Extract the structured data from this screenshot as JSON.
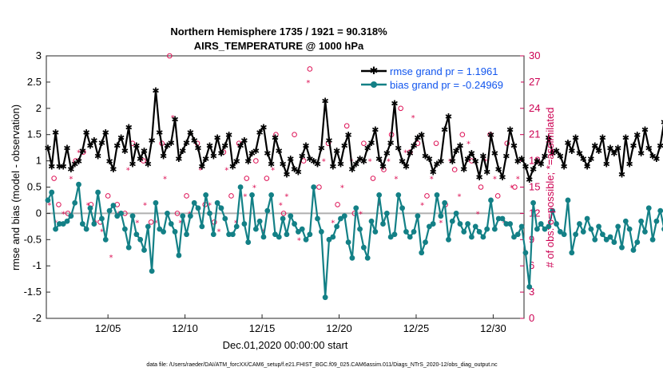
{
  "chart_data": {
    "type": "line",
    "title": "Northern Hemisphere 1735 / 1921 = 90.318%",
    "subtitle": "AIRS_TEMPERATURE @ 1000 hPa",
    "xlabel": "Dec.01,2020 00:00:00 start",
    "ylabel": "rmse and bias (model - observation)",
    "y2label": "# of obs: o=possible; *=assimilated",
    "footer": "data file: /Users/raeder/DAI/ATM_forcXX/CAM6_setup/f.e21.FHIST_BGC.f09_025.CAM6assim.011/Diags_NTrS_2020-12/obs_diag_output.nc",
    "xlim": [
      1,
      32
    ],
    "ylim": [
      -2,
      3
    ],
    "y2lim": [
      0,
      30
    ],
    "x_ticks": [
      {
        "x": 5,
        "label": "12/05"
      },
      {
        "x": 10,
        "label": "12/10"
      },
      {
        "x": 15,
        "label": "12/15"
      },
      {
        "x": 20,
        "label": "12/20"
      },
      {
        "x": 25,
        "label": "12/25"
      },
      {
        "x": 30,
        "label": "12/30"
      }
    ],
    "y_ticks": [
      "-2",
      "-1.5",
      "-1",
      "-0.5",
      "0",
      "0.5",
      "1",
      "1.5",
      "2",
      "2.5",
      "3"
    ],
    "y2_ticks": [
      "0",
      "3",
      "6",
      "9",
      "12",
      "15",
      "18",
      "21",
      "24",
      "27",
      "30"
    ],
    "legend": {
      "position": "top-right",
      "entries": [
        "rmse grand pr = 1.1961",
        "bias grand pr = -0.24969"
      ]
    },
    "x_start": 1.1,
    "x_step": 0.25,
    "series": [
      {
        "name": "rmse",
        "color": "#000000",
        "values": [
          1.25,
          0.9,
          1.55,
          0.9,
          0.9,
          1.25,
          0.85,
          0.95,
          1.0,
          1.2,
          1.55,
          1.3,
          1.4,
          1.1,
          1.35,
          1.55,
          1.0,
          0.85,
          1.3,
          1.45,
          1.2,
          1.65,
          0.95,
          1.3,
          1.05,
          1.2,
          0.95,
          1.4,
          2.35,
          1.55,
          1.1,
          1.3,
          1.35,
          1.8,
          1.05,
          1.2,
          1.35,
          1.55,
          1.4,
          1.25,
          0.9,
          1.05,
          1.3,
          1.1,
          1.45,
          1.15,
          1.3,
          1.5,
          0.9,
          1.0,
          1.3,
          1.4,
          1.0,
          1.15,
          1.2,
          1.55,
          1.65,
          1.15,
          0.95,
          1.45,
          1.2,
          0.95,
          0.75,
          1.05,
          0.85,
          0.8,
          1.1,
          1.3,
          1.05,
          1.0,
          0.95,
          1.25,
          2.15,
          1.4,
          0.9,
          1.2,
          0.95,
          1.3,
          1.5,
          0.85,
          0.95,
          1.05,
          1.0,
          1.25,
          1.35,
          1.6,
          1.05,
          0.9,
          1.15,
          1.35,
          2.1,
          1.25,
          1.0,
          0.9,
          1.15,
          1.3,
          1.45,
          1.5,
          1.1,
          1.05,
          0.8,
          0.95,
          1.0,
          1.6,
          1.85,
          1.0,
          1.2,
          1.3,
          0.85,
          1.05,
          1.15,
          1.0,
          0.7,
          1.1,
          0.8,
          1.5,
          1.15,
          0.85,
          0.7,
          1.1,
          1.6,
          1.3,
          1.0,
          1.05,
          0.9,
          0.65,
          0.85,
          1.0,
          0.95,
          1.1,
          1.45,
          1.15,
          1.2,
          1.1,
          0.9,
          1.35,
          1.2,
          1.45,
          1.15,
          1.05,
          0.9,
          1.05,
          1.3,
          1.2,
          1.45,
          0.95,
          1.25,
          1.15,
          1.25,
          0.75,
          1.45,
          0.95,
          1.3,
          1.5,
          1.15,
          1.6,
          1.25,
          1.1,
          1.05,
          1.3,
          1.75,
          1.2,
          1.05,
          1.35,
          1.25,
          1.0,
          1.55,
          1.1,
          1.15,
          1.45,
          1.45,
          1.05,
          1.0,
          1.25,
          1.05,
          0.85,
          0.95,
          0.95,
          1.0,
          1.85,
          1.0,
          0.7
        ]
      },
      {
        "name": "bias",
        "color": "#138086",
        "values": [
          0.25,
          0.4,
          -0.3,
          -0.2,
          -0.2,
          -0.15,
          -0.05,
          0.2,
          0.55,
          -0.2,
          -0.3,
          0.1,
          -0.2,
          0.4,
          -0.1,
          -0.5,
          0.05,
          0.15,
          -0.05,
          0.0,
          -0.3,
          -0.65,
          -0.05,
          -0.4,
          -0.5,
          -0.7,
          -0.25,
          -1.1,
          0.2,
          -0.3,
          -0.35,
          0.0,
          -0.2,
          -0.35,
          -0.8,
          -0.05,
          -0.4,
          -0.05,
          0.2,
          0.1,
          -0.25,
          0.35,
          0.0,
          -0.4,
          0.2,
          0.1,
          -0.1,
          -0.4,
          -0.4,
          -0.25,
          0.5,
          -0.2,
          -0.55,
          0.35,
          -0.3,
          -0.15,
          -0.45,
          0.05,
          0.35,
          -0.4,
          -0.45,
          -0.1,
          -0.4,
          -0.05,
          -0.2,
          -0.35,
          -0.3,
          -0.5,
          -0.4,
          0.5,
          -0.1,
          -0.35,
          -1.6,
          -0.5,
          -0.45,
          -0.25,
          -0.1,
          -0.05,
          -0.55,
          -0.85,
          0.1,
          -0.3,
          -0.65,
          -0.85,
          -0.15,
          -0.35,
          0.35,
          -0.2,
          0.0,
          -0.45,
          -0.4,
          0.35,
          0.1,
          -0.35,
          -0.45,
          -0.35,
          -0.05,
          -0.75,
          -0.55,
          -0.25,
          -0.2,
          0.35,
          -0.05,
          0.2,
          -0.5,
          -0.15,
          0.0,
          -0.2,
          -0.35,
          -0.2,
          -0.45,
          -0.25,
          -0.35,
          -0.45,
          -0.3,
          0.25,
          -0.3,
          -0.1,
          -0.1,
          -0.2,
          -0.2,
          -0.45,
          -0.4,
          -0.25,
          -0.75,
          -1.4,
          0.2,
          -0.3,
          -0.2,
          -0.3,
          -0.25,
          0.05,
          -0.2,
          -0.35,
          -0.4,
          0.25,
          -0.75,
          -0.4,
          -0.2,
          -0.35,
          -0.1,
          -0.3,
          -0.5,
          -0.25,
          -0.4,
          -0.5,
          -0.45,
          -0.55,
          -0.25,
          -0.65,
          -0.15,
          -0.3,
          -0.7,
          -0.55,
          -0.15,
          -0.35,
          0.1,
          -0.5,
          -0.15,
          0.05,
          -0.3,
          -0.4,
          -0.55,
          -0.75,
          -0.7,
          0.0,
          -0.4,
          -0.75,
          -0.75,
          -0.65,
          -0.45,
          0.0,
          -0.3,
          -0.55,
          -0.2,
          -0.25,
          -0.25,
          -0.3
        ]
      }
    ],
    "obs_possible": [
      [
        1.5,
        16
      ],
      [
        1.8,
        13
      ],
      [
        2.4,
        12
      ],
      [
        2.9,
        18
      ],
      [
        3.4,
        19
      ],
      [
        3.9,
        13
      ],
      [
        4.5,
        11
      ],
      [
        5.0,
        14
      ],
      [
        5.6,
        13
      ],
      [
        6.1,
        12
      ],
      [
        6.6,
        20
      ],
      [
        7.3,
        18
      ],
      [
        7.8,
        11
      ],
      [
        8.5,
        20
      ],
      [
        9.0,
        30
      ],
      [
        9.5,
        12
      ],
      [
        10.1,
        14
      ],
      [
        10.8,
        20
      ],
      [
        11.3,
        13
      ],
      [
        11.9,
        11
      ],
      [
        12.5,
        19
      ],
      [
        13.0,
        14
      ],
      [
        13.5,
        20
      ],
      [
        14.0,
        16
      ],
      [
        14.6,
        18
      ],
      [
        15.3,
        16
      ],
      [
        15.9,
        21
      ],
      [
        16.4,
        12
      ],
      [
        17.1,
        21
      ],
      [
        17.7,
        18
      ],
      [
        18.1,
        28.5
      ],
      [
        18.7,
        15
      ],
      [
        19.3,
        20
      ],
      [
        19.9,
        13
      ],
      [
        20.5,
        22
      ],
      [
        21.0,
        12
      ],
      [
        21.6,
        20
      ],
      [
        22.2,
        16
      ],
      [
        22.9,
        17
      ],
      [
        23.4,
        21
      ],
      [
        24.0,
        24
      ],
      [
        24.6,
        19
      ],
      [
        25.1,
        20
      ],
      [
        25.7,
        14
      ],
      [
        26.3,
        20
      ],
      [
        26.9,
        13
      ],
      [
        27.5,
        17
      ],
      [
        28.0,
        21
      ],
      [
        28.6,
        18
      ],
      [
        29.2,
        15
      ],
      [
        29.8,
        21
      ],
      [
        30.3,
        14
      ],
      [
        30.9,
        20
      ],
      [
        31.4,
        15
      ]
    ],
    "obs_assimilated": [
      [
        1.2,
        13
      ],
      [
        1.6,
        11
      ],
      [
        2.1,
        12
      ],
      [
        2.6,
        16
      ],
      [
        3.1,
        19
      ],
      [
        3.7,
        13
      ],
      [
        4.2,
        11
      ],
      [
        4.6,
        10
      ],
      [
        5.2,
        7
      ],
      [
        5.7,
        12
      ],
      [
        6.3,
        17
      ],
      [
        6.9,
        11
      ],
      [
        7.4,
        13
      ],
      [
        8.1,
        11
      ],
      [
        8.7,
        16
      ],
      [
        9.2,
        23
      ],
      [
        9.7,
        11
      ],
      [
        10.3,
        12
      ],
      [
        11.0,
        17
      ],
      [
        11.6,
        13
      ],
      [
        12.2,
        10
      ],
      [
        12.7,
        17
      ],
      [
        13.3,
        11
      ],
      [
        13.9,
        14
      ],
      [
        14.5,
        15
      ],
      [
        15.1,
        10
      ],
      [
        15.7,
        17
      ],
      [
        16.2,
        13
      ],
      [
        16.6,
        14
      ],
      [
        17.4,
        9
      ],
      [
        18.0,
        27
      ],
      [
        18.4,
        15
      ],
      [
        19.0,
        18
      ],
      [
        19.6,
        11
      ],
      [
        20.2,
        15
      ],
      [
        20.8,
        18
      ],
      [
        21.4,
        12
      ],
      [
        22.0,
        18
      ],
      [
        22.6,
        13
      ],
      [
        23.2,
        18
      ],
      [
        23.7,
        16
      ],
      [
        24.3,
        19
      ],
      [
        24.8,
        23
      ],
      [
        25.4,
        13
      ],
      [
        26.0,
        16
      ],
      [
        26.6,
        11
      ],
      [
        27.2,
        18
      ],
      [
        27.8,
        14
      ],
      [
        28.4,
        20
      ],
      [
        29.0,
        12
      ],
      [
        29.5,
        18
      ],
      [
        30.1,
        16
      ],
      [
        30.7,
        11
      ],
      [
        31.2,
        15
      ],
      [
        31.6,
        16
      ]
    ]
  }
}
